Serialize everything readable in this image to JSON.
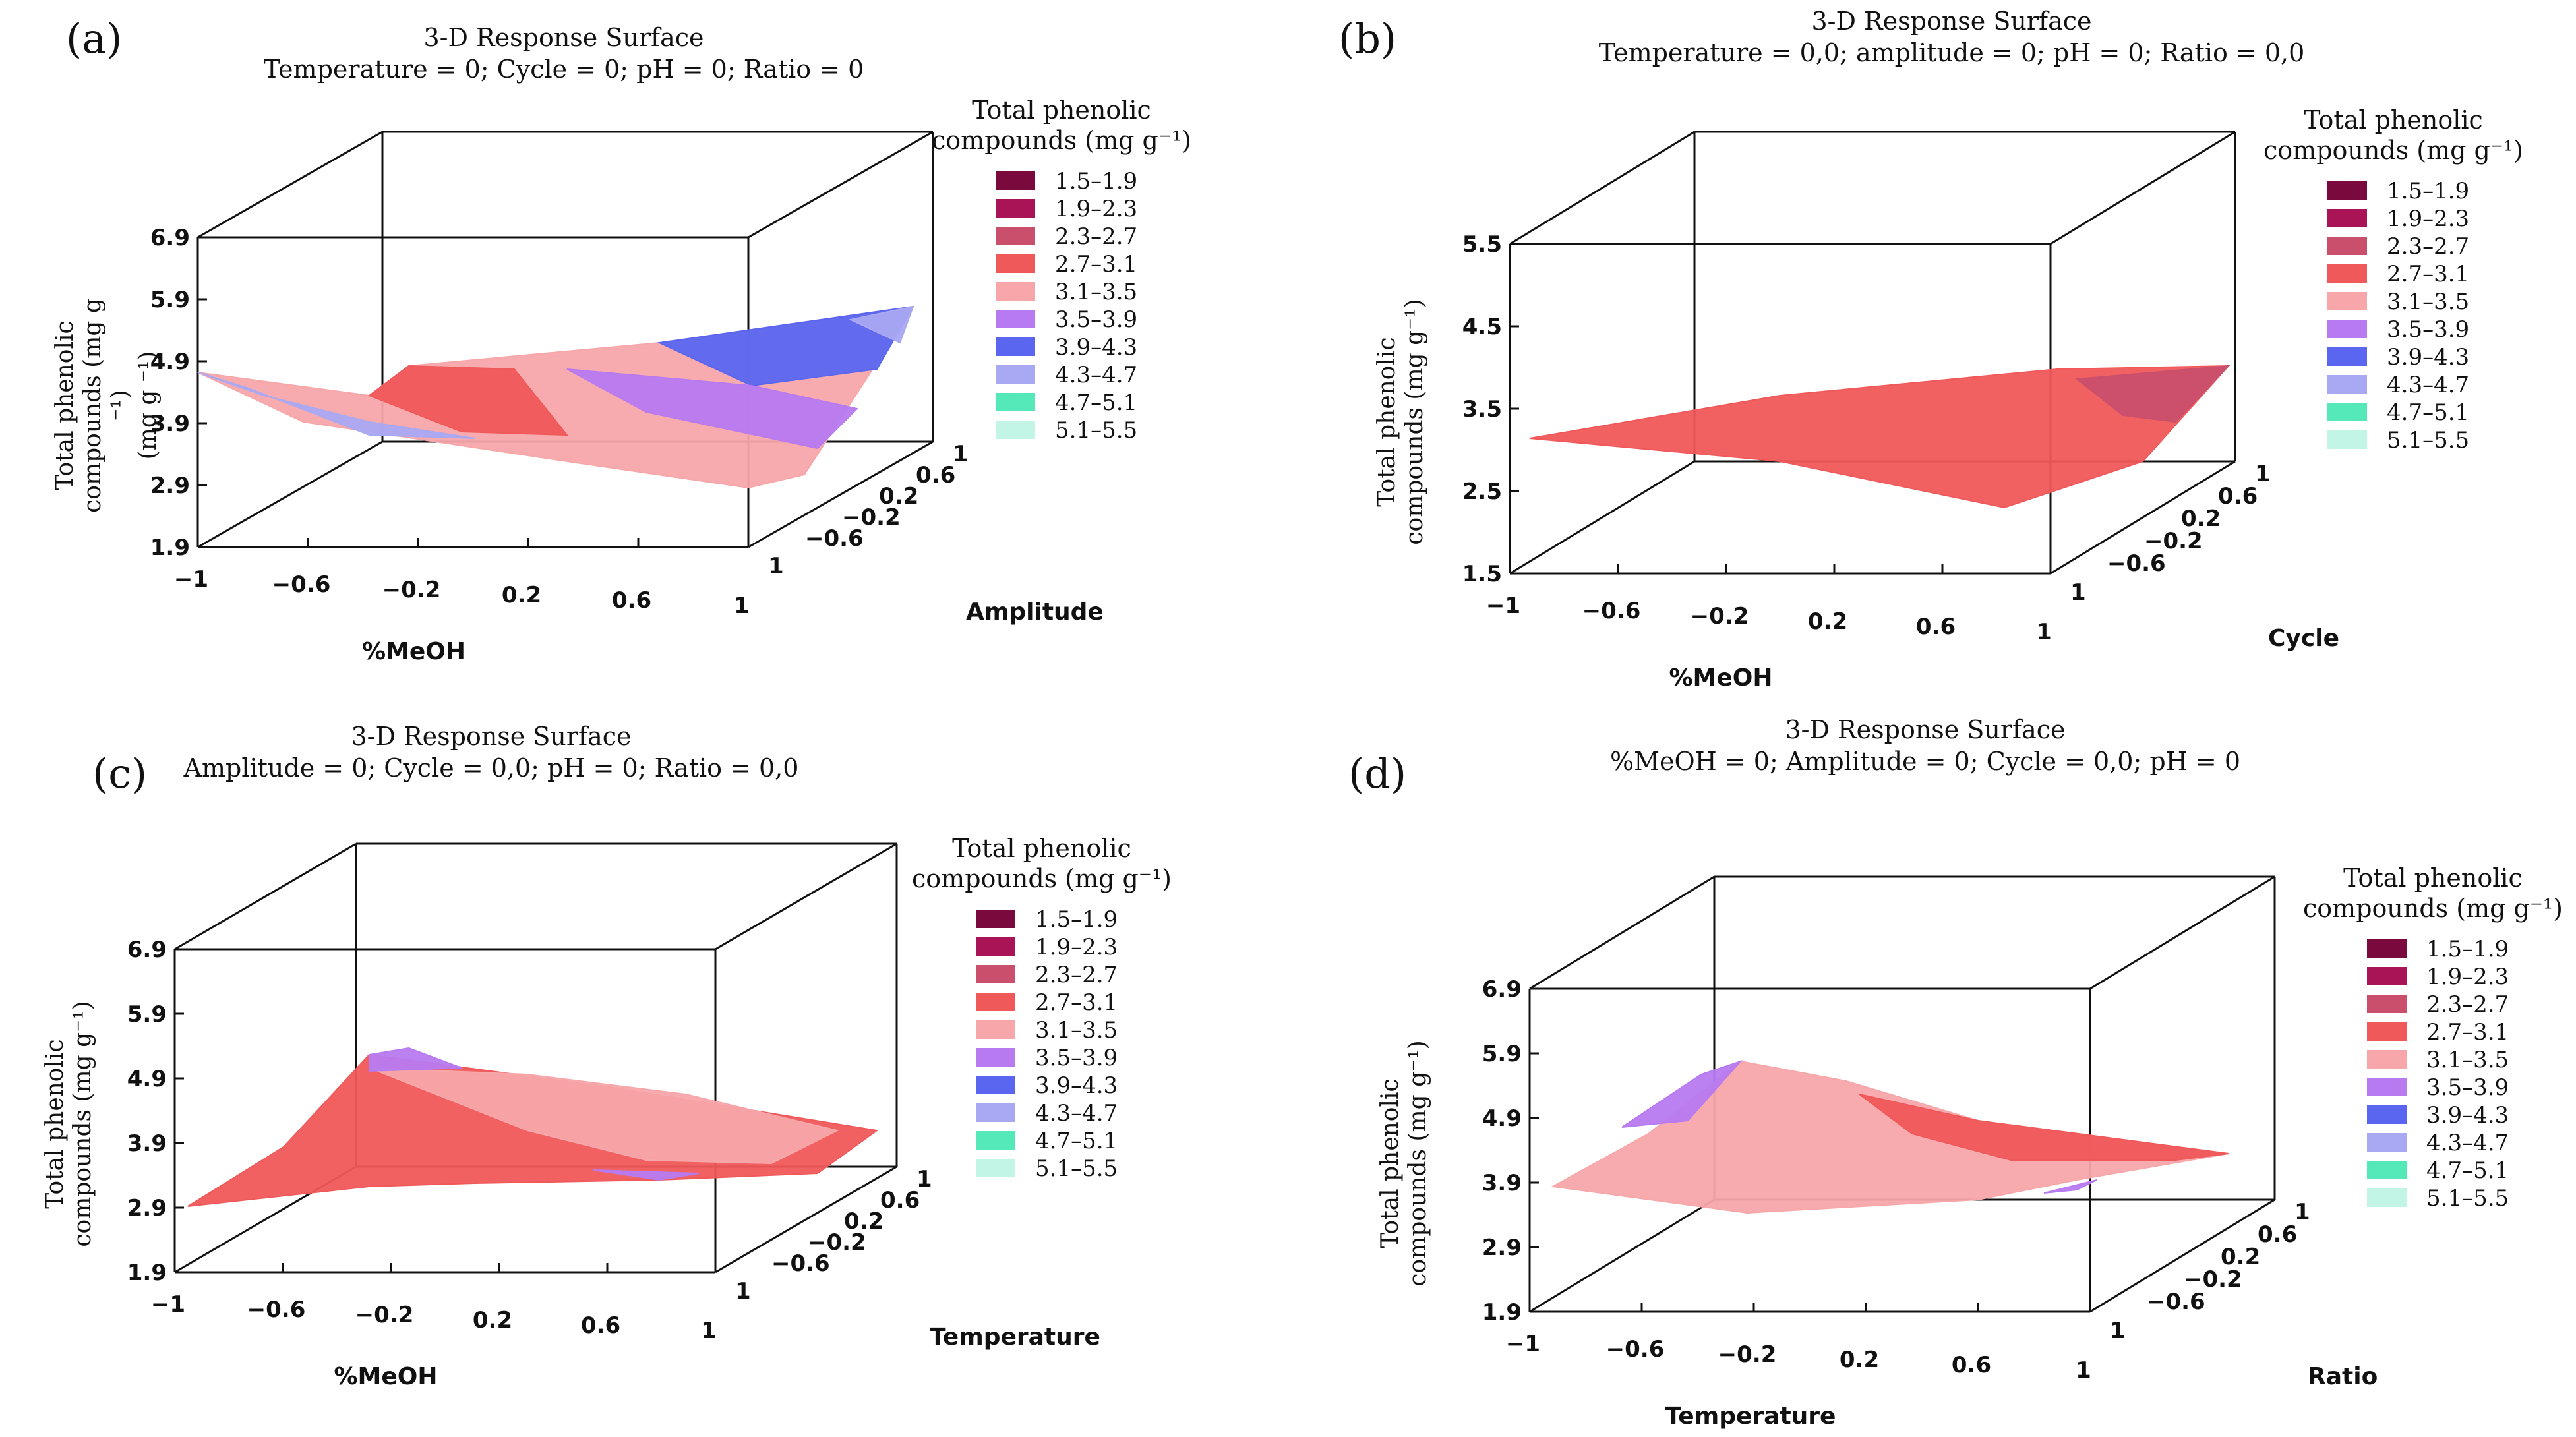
{
  "figure": "Four 3-D response surface plots of total phenolic compounds",
  "chart_data": [
    {
      "type": "surface3d",
      "panel_label": "(a)",
      "title": "3-D Response Surface",
      "subtitle": "Temperature = 0; Cycle = 0; pH = 0; Ratio = 0",
      "xlabel": "%MeOH",
      "ylabel": "Amplitude",
      "zlabel": "Total phenolic compounds (mg g⁻¹)",
      "x_ticks": [
        "−1",
        "−0.6",
        "−0.2",
        "0.2",
        "0.6",
        "1"
      ],
      "y_ticks": [
        "−0.6",
        "−0.2",
        "0.2",
        "0.6",
        "1"
      ],
      "y_ticks_front": "1",
      "z_ticks": [
        "1.9",
        "2.9",
        "3.9",
        "4.9",
        "5.9",
        "6.9"
      ],
      "zlim": [
        1.9,
        6.9
      ],
      "zlabel_lines": [
        "Total phenolic",
        "compounds (mg g",
        "⁻¹)"
      ],
      "zlabel_extra": "(mg g ⁻¹)",
      "surface_range": [
        2.8,
        5.1
      ]
    },
    {
      "type": "surface3d",
      "panel_label": "(b)",
      "title": "3-D Response Surface",
      "subtitle": "Temperature = 0,0; amplitude = 0; pH = 0; Ratio = 0,0",
      "xlabel": "%MeOH",
      "ylabel": "Cycle",
      "zlabel": "Total phenolic compounds (mg g⁻¹)",
      "x_ticks": [
        "−1",
        "−0.6",
        "−0.2",
        "0.2",
        "0.6",
        "1"
      ],
      "y_ticks": [
        "−0.6",
        "−0.2",
        "0.2",
        "0.6",
        "1"
      ],
      "y_ticks_front": "1",
      "z_ticks": [
        "1.5",
        "2.5",
        "3.5",
        "4.5",
        "5.5"
      ],
      "zlim": [
        1.5,
        5.5
      ],
      "zlabel_lines": [
        "Total phenolic",
        "compounds (mg g⁻¹)"
      ],
      "surface_range": [
        2.0,
        3.0
      ]
    },
    {
      "type": "surface3d",
      "panel_label": "(c)",
      "title": "3-D Response Surface",
      "subtitle": "Amplitude = 0; Cycle = 0,0; pH = 0; Ratio = 0,0",
      "xlabel": "%MeOH",
      "ylabel": "Temperature",
      "zlabel": "Total phenolic compounds (mg g⁻¹)",
      "x_ticks": [
        "−1",
        "−0.6",
        "−0.2",
        "0.2",
        "0.6",
        "1"
      ],
      "y_ticks": [
        "−0.6",
        "−0.2",
        "0.2",
        "0.6",
        "1"
      ],
      "y_ticks_front": "1",
      "z_ticks": [
        "1.9",
        "2.9",
        "3.9",
        "4.9",
        "5.9",
        "6.9"
      ],
      "zlim": [
        1.9,
        6.9
      ],
      "zlabel_lines": [
        "Total phenolic",
        "compounds (mg g⁻¹)"
      ],
      "surface_range": [
        2.9,
        4.2
      ]
    },
    {
      "type": "surface3d",
      "panel_label": "(d)",
      "title": "3-D Response Surface",
      "subtitle": "%MeOH = 0; Amplitude = 0; Cycle = 0,0; pH = 0",
      "xlabel": "Temperature",
      "ylabel": "Ratio",
      "zlabel": "Total phenolic compounds (mg g⁻¹)",
      "x_ticks": [
        "−1",
        "−0.6",
        "−0.2",
        "0.2",
        "0.6",
        "1"
      ],
      "y_ticks": [
        "−0.6",
        "−0.2",
        "0.2",
        "0.6",
        "1"
      ],
      "y_ticks_front": "1",
      "z_ticks": [
        "1.9",
        "2.9",
        "3.9",
        "4.9",
        "5.9",
        "6.9"
      ],
      "zlim": [
        1.9,
        6.9
      ],
      "zlabel_lines": [
        "Total phenolic",
        "compounds (mg g⁻¹)"
      ],
      "surface_range": [
        3.0,
        4.4
      ]
    }
  ],
  "legend": {
    "title_line1": "Total phenolic",
    "title_line2": "compounds (mg g⁻¹)",
    "entries": [
      {
        "label": "1.5–1.9",
        "color": "#7a0a3e"
      },
      {
        "label": "1.9–2.3",
        "color": "#a81456"
      },
      {
        "label": "2.3–2.7",
        "color": "#c94f6d"
      },
      {
        "label": "2.7–3.1",
        "color": "#f0595a"
      },
      {
        "label": "3.1–3.5",
        "color": "#f7a7aa"
      },
      {
        "label": "3.5–3.9",
        "color": "#b77af0"
      },
      {
        "label": "3.9–4.3",
        "color": "#5a66f0"
      },
      {
        "label": "4.3–4.7",
        "color": "#a9a8f2"
      },
      {
        "label": "4.7–5.1",
        "color": "#55e8b8"
      },
      {
        "label": "5.1–5.5",
        "color": "#c2f5e6"
      }
    ]
  }
}
